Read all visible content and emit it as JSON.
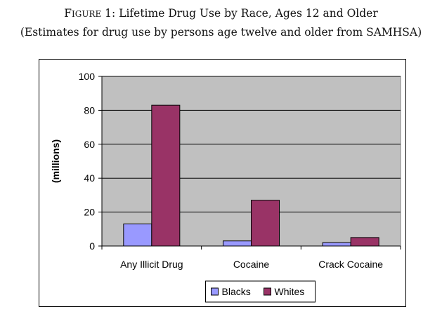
{
  "figure": {
    "title_prefix": "Figure",
    "title_rest": " 1: Lifetime Drug Use by Race, Ages 12 and Older",
    "subtitle": "(Estimates for drug use by persons age twelve and older from SAMHSA)"
  },
  "chart_data": {
    "type": "bar",
    "title": "",
    "xlabel": "",
    "ylabel": "(millions)",
    "ylim": [
      0,
      100
    ],
    "yticks": [
      0,
      20,
      40,
      60,
      80,
      100
    ],
    "categories": [
      "Any Illicit Drug",
      "Cocaine",
      "Crack Cocaine"
    ],
    "series": [
      {
        "name": "Blacks",
        "values": [
          13,
          3,
          2
        ],
        "color": "#9999ff"
      },
      {
        "name": "Whites",
        "values": [
          83,
          27,
          5
        ],
        "color": "#993366"
      }
    ],
    "grid": true,
    "legend_position": "bottom",
    "plot_background": "#c0c0c0"
  }
}
